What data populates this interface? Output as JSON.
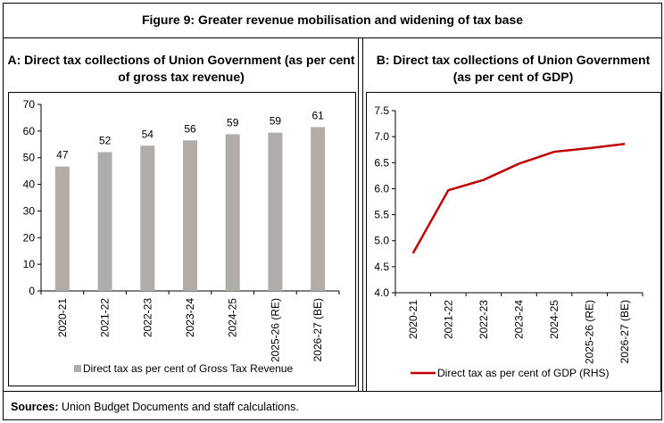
{
  "figure_title": "Figure 9: Greater revenue mobilisation and widening of tax base",
  "sources_label": "Sources:",
  "sources_text": " Union Budget Documents and staff calculations.",
  "colors": {
    "bar": "#b0aca9",
    "line": "#c00000"
  },
  "chart_data": [
    {
      "type": "bar",
      "title": "A: Direct tax collections of Union Government (as per cent of gross tax revenue)",
      "categories": [
        "2020-21",
        "2021-22",
        "2022-23",
        "2023-24",
        "2024-25",
        "2025-26 (RE)",
        "2026-27 (BE)"
      ],
      "series": [
        {
          "name": "Direct tax as per cent of Gross Tax Revenue",
          "values": [
            46.7,
            52.1,
            54.5,
            56.5,
            58.8,
            59.4,
            61.5
          ]
        }
      ],
      "data_labels": [
        "47",
        "52",
        "54",
        "56",
        "59",
        "59",
        "61"
      ],
      "ylim": [
        0,
        70
      ],
      "yticks": [
        "0",
        "10",
        "20",
        "30",
        "40",
        "50",
        "60",
        "70"
      ],
      "grid": false,
      "legend": "bottom"
    },
    {
      "type": "line",
      "title": "B: Direct tax collections of Union Government (as per cent of GDP)",
      "categories": [
        "2020-21",
        "2021-22",
        "2022-23",
        "2023-24",
        "2024-25",
        "2025-26 (RE)",
        "2026-27 (BE)"
      ],
      "series": [
        {
          "name": "Direct tax as per cent of GDP (RHS)",
          "values": [
            4.76,
            5.97,
            6.17,
            6.48,
            6.71,
            6.78,
            6.86
          ]
        }
      ],
      "ylim": [
        4.0,
        7.5
      ],
      "yticks": [
        "4.0",
        "4.5",
        "5.0",
        "5.5",
        "6.0",
        "6.5",
        "7.0",
        "7.5"
      ],
      "grid": false,
      "legend": "bottom"
    }
  ]
}
